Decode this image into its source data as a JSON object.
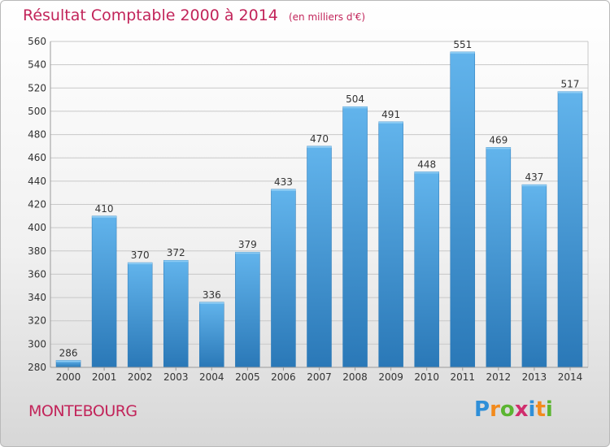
{
  "header": {
    "title": "Résultat Comptable 2000 à 2014",
    "unit": "(en milliers d'€)"
  },
  "footer": {
    "location": "MONTEBOURG",
    "brand_letters": [
      "P",
      "r",
      "o",
      "x",
      "i",
      "t",
      "i"
    ],
    "brand_colors": [
      "#2f8fd8",
      "#f28a1c",
      "#5bb531",
      "#d02d6d",
      "#2f8fd8",
      "#f28a1c",
      "#5bb531"
    ]
  },
  "colors": {
    "title": "#c2245a",
    "bar_light": "#62b4ec",
    "bar_dark": "#2a78b7",
    "grid": "#c8c8c8"
  },
  "chart_data": {
    "type": "bar",
    "title": "Résultat Comptable 2000 à 2014",
    "xlabel": "",
    "ylabel": "",
    "ylim": [
      280,
      560
    ],
    "yticks": [
      280,
      300,
      320,
      340,
      360,
      380,
      400,
      420,
      440,
      460,
      480,
      500,
      520,
      540,
      560
    ],
    "grid": true,
    "categories": [
      "2000",
      "2001",
      "2002",
      "2003",
      "2004",
      "2005",
      "2006",
      "2007",
      "2008",
      "2009",
      "2010",
      "2011",
      "2012",
      "2013",
      "2014"
    ],
    "values": [
      286,
      410,
      370,
      372,
      336,
      379,
      433,
      470,
      504,
      491,
      448,
      551,
      469,
      437,
      517
    ]
  }
}
